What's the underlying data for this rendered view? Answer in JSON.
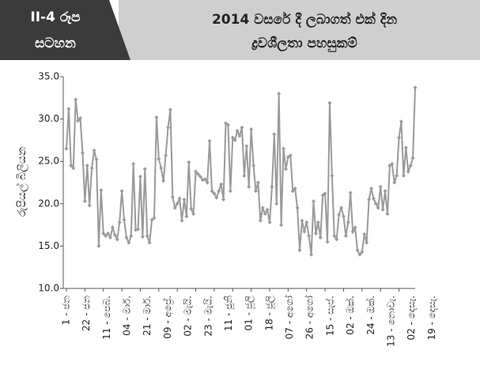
{
  "chart_data": {
    "type": "line",
    "figure_label": [
      "II-4 රූප",
      "සටහන"
    ],
    "title": [
      "2014 වසරේ දී ලබාගත් එක් දින",
      "ද්‍රවශීලතා පහසුකම්"
    ],
    "ylabel": "රුපියල් බිලියන",
    "color": "#9a9a9a",
    "ylim": [
      10,
      35
    ],
    "yticks": [
      {
        "value": 10,
        "label": "10.0"
      },
      {
        "value": 15,
        "label": "15.0"
      },
      {
        "value": 20,
        "label": "20.0"
      },
      {
        "value": 25,
        "label": "25.0"
      },
      {
        "value": 30,
        "label": "30.0"
      },
      {
        "value": 35,
        "label": "35.0"
      }
    ],
    "categories": [
      "1 - ජන",
      null,
      null,
      null,
      null,
      null,
      null,
      null,
      "22 - ජන",
      null,
      null,
      null,
      null,
      null,
      null,
      null,
      "11 - පෙබ.",
      null,
      null,
      null,
      null,
      null,
      null,
      null,
      "04 - මාර්.",
      null,
      null,
      null,
      null,
      null,
      null,
      null,
      "21 - මාර්.",
      null,
      null,
      null,
      null,
      null,
      null,
      null,
      "09 - අප්‍රේ.",
      null,
      null,
      null,
      null,
      null,
      null,
      null,
      "02 - මැයි.",
      null,
      null,
      null,
      null,
      null,
      null,
      null,
      "23 - මැයි.",
      null,
      null,
      null,
      null,
      null,
      null,
      null,
      "11 - ජූනි",
      null,
      null,
      null,
      null,
      null,
      null,
      null,
      "01 - ජූලි",
      null,
      null,
      null,
      null,
      null,
      null,
      null,
      "18 - ජූලි",
      null,
      null,
      null,
      null,
      null,
      null,
      null,
      "07 - අගෝ",
      null,
      null,
      null,
      null,
      null,
      null,
      null,
      "26 - අගෝ",
      null,
      null,
      null,
      null,
      null,
      null,
      null,
      "15 - සැප්.",
      null,
      null,
      null,
      null,
      null,
      null,
      null,
      "02 - ඔක්.",
      null,
      null,
      null,
      null,
      null,
      null,
      null,
      "24 - ඔක්.",
      null,
      null,
      null,
      null,
      null,
      null,
      null,
      "13 - නොවැ.",
      null,
      null,
      null,
      null,
      null,
      null,
      null,
      "02 - දෙසැ.",
      null,
      null,
      null,
      null,
      null,
      null,
      null,
      "19 - දෙසැ.",
      null,
      null,
      null,
      null,
      null,
      null,
      null
    ],
    "values": [
      26.5,
      31.2,
      24.5,
      24.2,
      32.3,
      29.8,
      30.1,
      26.0,
      20.3,
      24.5,
      19.8,
      24.2,
      26.3,
      25.2,
      15.0,
      21.6,
      16.5,
      16.2,
      16.5,
      16.0,
      17.2,
      16.3,
      15.8,
      17.8,
      21.5,
      18.1,
      16.0,
      15.4,
      16.2,
      24.7,
      16.9,
      17.0,
      23.2,
      16.1,
      24.1,
      16.2,
      15.4,
      18.1,
      18.3,
      30.2,
      25.3,
      24.2,
      22.7,
      25.7,
      29.0,
      31.1,
      20.8,
      19.5,
      20.0,
      20.6,
      18.0,
      20.5,
      18.5,
      24.9,
      19.4,
      18.8,
      23.8,
      23.5,
      23.2,
      22.8,
      22.9,
      22.5,
      27.4,
      21.5,
      21.2,
      20.7,
      21.5,
      22.3,
      20.5,
      29.5,
      29.3,
      21.5,
      27.8,
      27.5,
      28.6,
      28.0,
      29.0,
      23.3,
      26.8,
      22.0,
      28.8,
      24.5,
      21.5,
      22.5,
      18.0,
      19.5,
      18.8,
      19.3,
      17.8,
      22.0,
      28.2,
      20.0,
      33.0,
      17.5,
      26.5,
      24.1,
      25.5,
      25.7,
      21.5,
      21.8,
      19.5,
      14.5,
      18.0,
      16.7,
      17.8,
      16.2,
      14.0,
      20.3,
      16.5,
      17.8,
      16.0,
      21.0,
      21.2,
      15.5,
      31.9,
      23.3,
      16.2,
      15.8,
      18.7,
      19.5,
      18.5,
      16.2,
      17.8,
      21.3,
      16.7,
      17.2,
      14.5,
      14.0,
      14.3,
      16.4,
      15.4,
      20.5,
      21.8,
      20.6,
      20.0,
      19.5,
      22.0,
      19.3,
      21.5,
      18.8,
      24.5,
      24.7,
      22.5,
      23.3,
      27.8,
      29.7,
      23.3,
      26.6,
      23.8,
      24.5,
      25.4,
      33.7
    ]
  }
}
